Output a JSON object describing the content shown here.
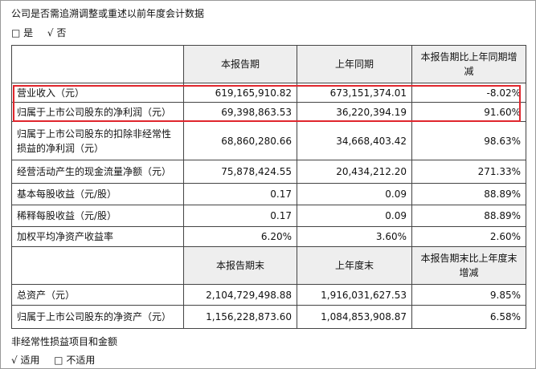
{
  "retro_question": "公司是否需追溯调整或重述以前年度会计数据",
  "retro_options": [
    {
      "mark": "□",
      "label": "是"
    },
    {
      "mark": "√",
      "label": "否"
    }
  ],
  "header1": [
    "本报告期",
    "上年同期",
    "本报告期比上年同期增减"
  ],
  "rows1": [
    {
      "label": "营业收入（元）",
      "current": "619,165,910.82",
      "prior": "673,151,374.01",
      "change": "-8.02%"
    },
    {
      "label": "归属于上市公司股东的净利润（元）",
      "current": "69,398,863.53",
      "prior": "36,220,394.19",
      "change": "91.60%"
    },
    {
      "label": "归属于上市公司股东的扣除非经常性损益的净利润（元）",
      "current": "68,860,280.66",
      "prior": "34,668,403.42",
      "change": "98.63%"
    },
    {
      "label": "经营活动产生的现金流量净额（元）",
      "current": "75,878,424.55",
      "prior": "20,434,212.20",
      "change": "271.33%"
    },
    {
      "label": "基本每股收益（元/股）",
      "current": "0.17",
      "prior": "0.09",
      "change": "88.89%"
    },
    {
      "label": "稀释每股收益（元/股）",
      "current": "0.17",
      "prior": "0.09",
      "change": "88.89%"
    },
    {
      "label": "加权平均净资产收益率",
      "current": "6.20%",
      "prior": "3.60%",
      "change": "2.60%"
    }
  ],
  "header2": [
    "本报告期末",
    "上年度末",
    "本报告期末比上年度末增减"
  ],
  "rows2": [
    {
      "label": "总资产（元）",
      "current": "2,104,729,498.88",
      "prior": "1,916,031,627.53",
      "change": "9.85%"
    },
    {
      "label": "归属于上市公司股东的净资产（元）",
      "current": "1,156,228,873.60",
      "prior": "1,084,853,908.87",
      "change": "6.58%"
    }
  ],
  "nonrecurring_title": "非经常性损益项目和金额",
  "nonrecurring_options": [
    {
      "mark": "√",
      "label": "适用"
    },
    {
      "mark": "□",
      "label": "不适用"
    }
  ],
  "colors": {
    "highlight_border": "#e0262d",
    "header_bg": "#eeeeee",
    "grid": "#444444"
  }
}
